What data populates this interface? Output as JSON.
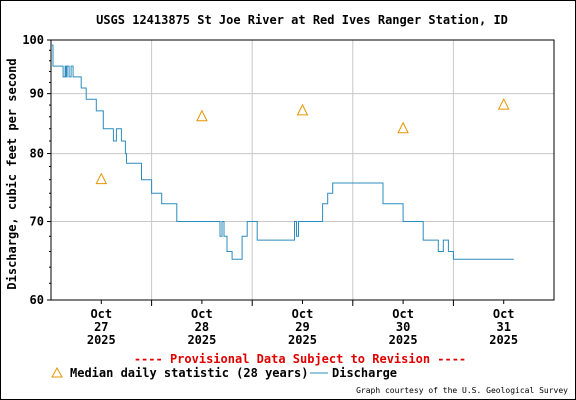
{
  "chart_data": {
    "type": "line",
    "title": "USGS 12413875 St Joe River at Red Ives Ranger Station, ID",
    "ylabel": "Discharge, cubic feet per second",
    "xlabel": "",
    "y_scale": "log",
    "ylim": [
      60,
      100
    ],
    "y_ticks": [
      "100",
      "90",
      "80",
      "70",
      "60"
    ],
    "y_tick_values": [
      100,
      90,
      80,
      70,
      60
    ],
    "x_range": [
      26.5,
      31.5
    ],
    "x_tick_values": [
      27,
      28,
      29,
      30,
      31
    ],
    "x_ticks": [
      {
        "month": "Oct",
        "day": "27",
        "year": "2025"
      },
      {
        "month": "Oct",
        "day": "28",
        "year": "2025"
      },
      {
        "month": "Oct",
        "day": "29",
        "year": "2025"
      },
      {
        "month": "Oct",
        "day": "30",
        "year": "2025"
      },
      {
        "month": "Oct",
        "day": "31",
        "year": "2025"
      }
    ],
    "grid": true,
    "notice": "---- Provisional Data Subject to Revision ----",
    "legend": {
      "median_label": "Median daily statistic (28 years)",
      "discharge_label": "Discharge"
    },
    "credit": "Graph courtesy of the U.S. Geological Survey",
    "colors": {
      "discharge": "#2b8cbe",
      "median": "#e69500",
      "notice": "#e00000",
      "grid": "#c8c8c8"
    },
    "series": [
      {
        "name": "Discharge",
        "x": [
          26.5,
          26.52,
          26.54,
          26.6,
          26.62,
          26.64,
          26.65,
          26.66,
          26.68,
          26.7,
          26.72,
          26.8,
          26.85,
          26.95,
          27.0,
          27.02,
          27.04,
          27.05,
          27.1,
          27.12,
          27.15,
          27.2,
          27.22,
          27.24,
          27.25,
          27.28,
          27.35,
          27.4,
          27.5,
          27.6,
          27.65,
          27.7,
          27.75,
          27.8,
          27.85,
          27.9,
          28.0,
          28.05,
          28.1,
          28.15,
          28.18,
          28.2,
          28.22,
          28.25,
          28.3,
          28.35,
          28.4,
          28.45,
          28.5,
          28.55,
          28.6,
          28.8,
          28.9,
          28.92,
          28.94,
          28.96,
          29.0,
          29.1,
          29.2,
          29.25,
          29.3,
          29.4,
          29.5,
          29.6,
          29.7,
          29.8,
          29.9,
          30.0,
          30.1,
          30.2,
          30.25,
          30.3,
          30.35,
          30.4,
          30.45,
          30.5,
          31.0,
          31.1
        ],
        "y": [
          99,
          95,
          95,
          95,
          93,
          95,
          93,
          95,
          93,
          95,
          93,
          91,
          89,
          87,
          87,
          84,
          84,
          84,
          84,
          82,
          84,
          82,
          82,
          80,
          78.5,
          78.5,
          78.5,
          76,
          74,
          72.5,
          72.5,
          72.5,
          70,
          70,
          70,
          70,
          70,
          70,
          70,
          70,
          68,
          70,
          68,
          66,
          65,
          65,
          68,
          70,
          70,
          67.5,
          67.5,
          67.5,
          67.5,
          70,
          68,
          70,
          70,
          70,
          72.5,
          74,
          75.5,
          75.5,
          75.5,
          75.5,
          75.5,
          72.5,
          72.5,
          70,
          70,
          67.5,
          67.5,
          67.5,
          66,
          67.5,
          66,
          65,
          65,
          65
        ]
      },
      {
        "name": "Median daily statistic (28 years)",
        "x": [
          27.0,
          28.0,
          29.0,
          30.0,
          31.0
        ],
        "y": [
          76,
          86,
          87,
          84,
          88
        ]
      }
    ]
  }
}
